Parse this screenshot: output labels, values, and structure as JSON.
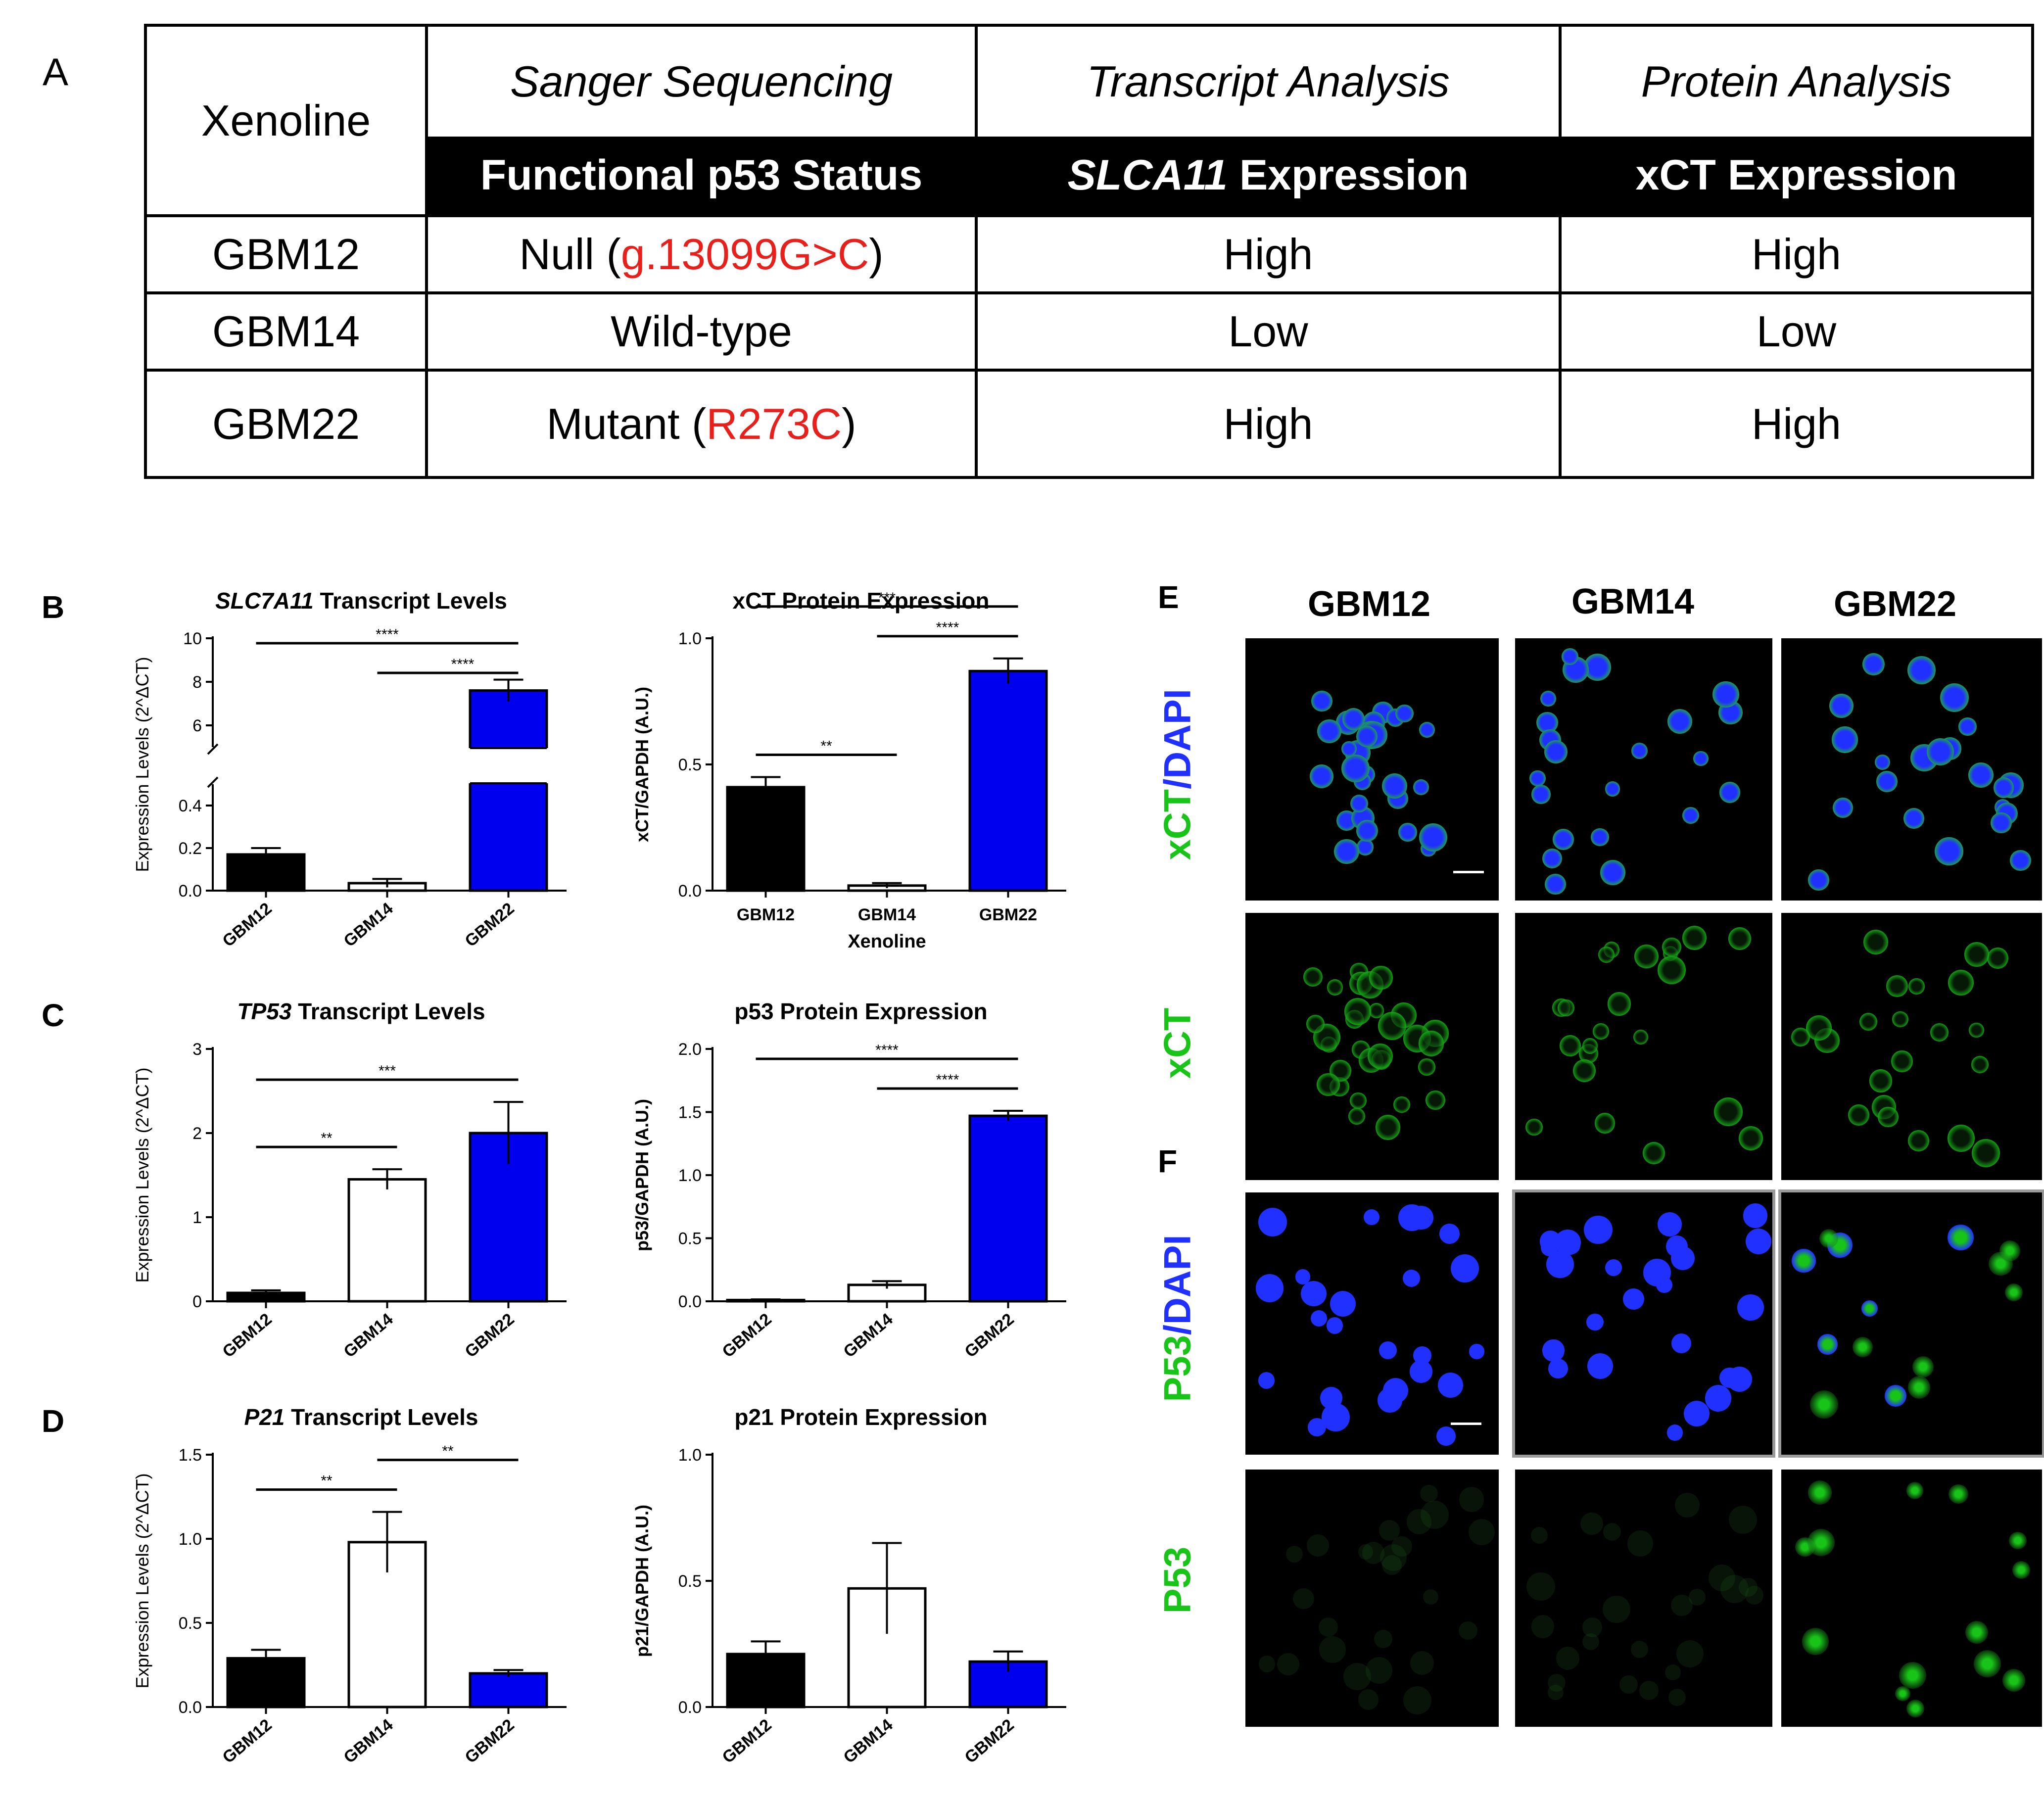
{
  "panels": {
    "A": "A",
    "B": "B",
    "C": "C",
    "D": "D",
    "E": "E",
    "F": "F"
  },
  "table": {
    "xenoline_header": "Xenoline",
    "col_headers": [
      "Sanger Sequencing",
      "Transcript Analysis",
      "Protein Analysis"
    ],
    "subheaders": [
      {
        "italic": "",
        "normal": "Functional p53 Status"
      },
      {
        "italic": "SLCA11",
        "normal": " Expression"
      },
      {
        "italic": "",
        "normal": "xCT Expression"
      }
    ],
    "rows": [
      {
        "xenoline": "GBM12",
        "status": "Null (",
        "mutation": "g.13099G>C",
        "close": ")",
        "transcript": "High",
        "protein": "High"
      },
      {
        "xenoline": "GBM14",
        "status": "Wild-type",
        "mutation": "",
        "close": "",
        "transcript": "Low",
        "protein": "Low"
      },
      {
        "xenoline": "GBM22",
        "status": "Mutant (",
        "mutation": "R273C",
        "close": ")",
        "transcript": "High",
        "protein": "High"
      }
    ],
    "accent_color": "#e8201c"
  },
  "colors": {
    "GBM12": "#000000",
    "GBM14": "#ffffff",
    "GBM22": "#0000ee"
  },
  "chart_data": [
    {
      "id": "B-left",
      "type": "bar",
      "title_italic": "SLC7A11",
      "title_rest": " Transcript Levels",
      "ylabel": "Expression  Levels (2^ΔCT)",
      "categories": [
        "GBM12",
        "GBM14",
        "GBM22"
      ],
      "values": [
        0.17,
        0.035,
        7.6
      ],
      "errors": [
        0.03,
        0.02,
        0.5
      ],
      "broken_axis": {
        "lower": [
          0,
          0.5
        ],
        "upper": [
          5,
          10
        ]
      },
      "yticks_lower": [
        "0.0",
        "0.2",
        "0.4"
      ],
      "yticks_upper": [
        "6",
        "8",
        "10"
      ],
      "significance": [
        {
          "from": 0,
          "to": 2,
          "label": "****"
        },
        {
          "from": 1,
          "to": 2,
          "label": "****"
        }
      ]
    },
    {
      "id": "B-right",
      "type": "bar",
      "title": "xCT Protein Expression",
      "ylabel": "xCT/GAPDH (A.U.)",
      "xlabel": "Xenoline",
      "categories": [
        "GBM12",
        "GBM14",
        "GBM22"
      ],
      "tick_rotation": 0,
      "values": [
        0.41,
        0.02,
        0.87
      ],
      "errors": [
        0.04,
        0.01,
        0.05
      ],
      "ylim": [
        0,
        1.0
      ],
      "yticks": [
        "0.0",
        "0.5",
        "1.0"
      ],
      "significance": [
        {
          "from": 1,
          "to": 2,
          "label": "****"
        },
        {
          "from": 0,
          "to": 2,
          "label": "***"
        },
        {
          "from": 0,
          "to": 1,
          "label": "**"
        }
      ]
    },
    {
      "id": "C-left",
      "type": "bar",
      "title_italic": "TP53",
      "title_rest": " Transcript Levels",
      "ylabel": "Expression  Levels (2^ΔCT)",
      "categories": [
        "GBM12",
        "GBM14",
        "GBM22"
      ],
      "values": [
        0.1,
        1.45,
        2.0
      ],
      "errors": [
        0.03,
        0.12,
        0.37
      ],
      "ylim": [
        0,
        3
      ],
      "yticks": [
        "0",
        "1",
        "2",
        "3"
      ],
      "significance": [
        {
          "from": 0,
          "to": 2,
          "label": "***"
        },
        {
          "from": 0,
          "to": 1,
          "label": "**"
        }
      ]
    },
    {
      "id": "C-right",
      "type": "bar",
      "title": "p53 Protein Expression",
      "ylabel": "p53/GAPDH (A.U.)",
      "categories": [
        "GBM12",
        "GBM14",
        "GBM22"
      ],
      "values": [
        0.01,
        0.13,
        1.47
      ],
      "errors": [
        0.005,
        0.03,
        0.04
      ],
      "ylim": [
        0,
        2.0
      ],
      "yticks": [
        "0.0",
        "0.5",
        "1.0",
        "1.5",
        "2.0"
      ],
      "significance": [
        {
          "from": 1,
          "to": 2,
          "label": "****"
        },
        {
          "from": 0,
          "to": 2,
          "label": "****"
        }
      ]
    },
    {
      "id": "D-left",
      "type": "bar",
      "title_italic": "P21",
      "title_rest": " Transcript Levels",
      "ylabel": "Expression  Levels (2^ΔCT)",
      "categories": [
        "GBM12",
        "GBM14",
        "GBM22"
      ],
      "values": [
        0.29,
        0.98,
        0.2
      ],
      "errors": [
        0.05,
        0.18,
        0.02
      ],
      "ylim": [
        0,
        1.5
      ],
      "yticks": [
        "0.0",
        "0.5",
        "1.0",
        "1.5"
      ],
      "significance": [
        {
          "from": 0,
          "to": 1,
          "label": "**"
        },
        {
          "from": 1,
          "to": 2,
          "label": "**"
        }
      ]
    },
    {
      "id": "D-right",
      "type": "bar",
      "title": "p21 Protein Expression",
      "ylabel": "p21/GAPDH (A.U.)",
      "categories": [
        "GBM12",
        "GBM14",
        "GBM22"
      ],
      "values": [
        0.21,
        0.47,
        0.18
      ],
      "errors": [
        0.05,
        0.18,
        0.04
      ],
      "ylim": [
        0,
        1.0
      ],
      "yticks": [
        "0.0",
        "0.5",
        "1.0"
      ],
      "significance": []
    }
  ],
  "micrographs": {
    "columns": [
      "GBM12",
      "GBM14",
      "GBM22"
    ],
    "row_labels": [
      {
        "a": "xCT",
        "b": "/",
        "c": "DAPI"
      },
      {
        "a": "xCT",
        "b": "",
        "c": ""
      },
      {
        "a": "P53",
        "b": "/",
        "c": "DAPI"
      },
      {
        "a": "P53",
        "b": "",
        "c": ""
      }
    ],
    "green": "#18c418",
    "blue": "#2030ff"
  }
}
